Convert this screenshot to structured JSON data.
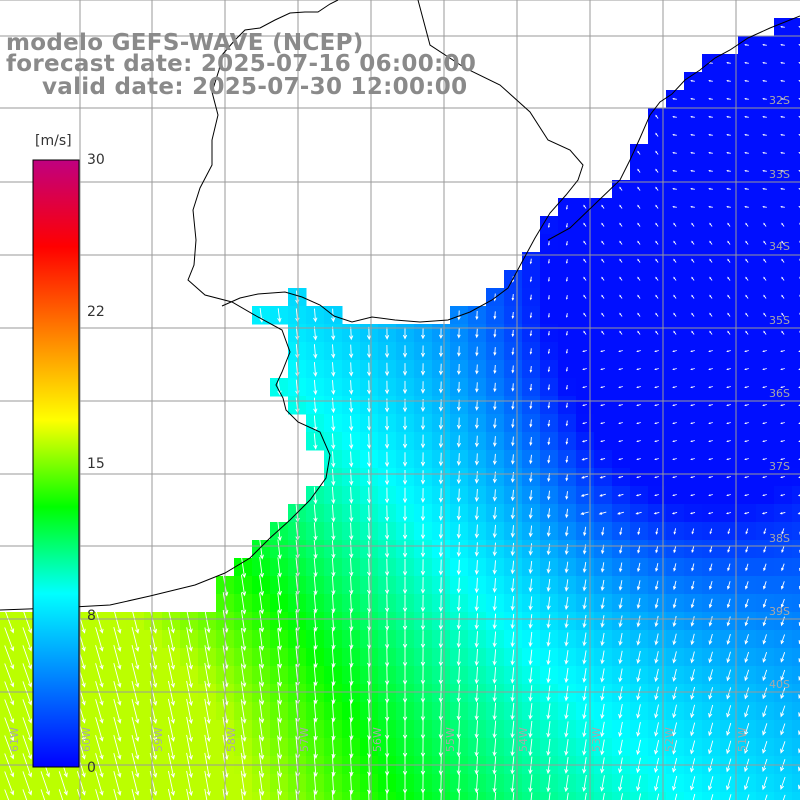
{
  "title": {
    "line1": "modelo GEFS-WAVE (NCEP)",
    "line2": "forecast date: 2025-07-16 06:00:00",
    "line3": "valid date: 2025-07-30 12:00:00"
  },
  "colorbar": {
    "unit": "[m/s]",
    "ticks": [
      "30",
      "22",
      "15",
      "8",
      "0"
    ],
    "tick_values": [
      30,
      22,
      15,
      8,
      0
    ],
    "min": 0,
    "max": 30,
    "colors": [
      "#0000ff",
      "#0080ff",
      "#00ffff",
      "#00ff00",
      "#ffff00",
      "#ff8000",
      "#ff0000",
      "#c00080"
    ]
  },
  "map": {
    "field": "wind speed and direction",
    "lat_labels": [
      "32S",
      "33S",
      "34S",
      "35S",
      "36S",
      "37S",
      "38S",
      "39S",
      "40S"
    ],
    "lon_labels": [
      "61W",
      "60W",
      "59W",
      "58W",
      "57W",
      "56W",
      "55W",
      "54W",
      "53W",
      "52W",
      "51W"
    ],
    "land_color": "#ffffff",
    "coast_color": "#000000",
    "grid_color": "#9a9a9a",
    "arrow_color": "#ffffff",
    "dominant_wind_direction": "from north (arrows pointing south)"
  }
}
